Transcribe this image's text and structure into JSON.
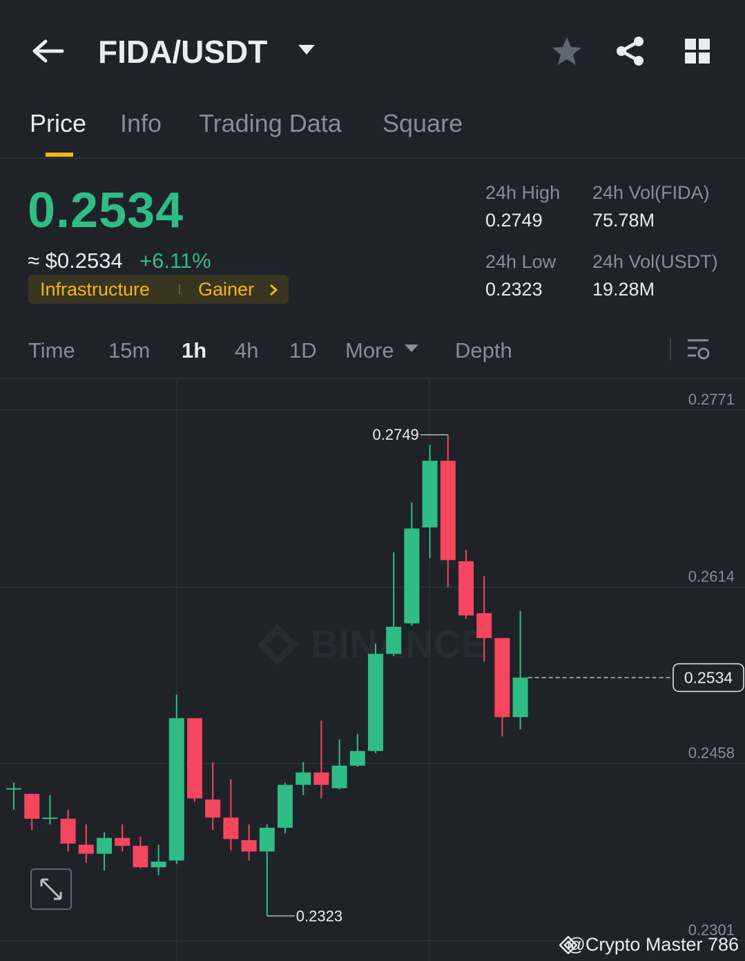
{
  "header": {
    "pair": "FIDA/USDT"
  },
  "tabs": [
    "Price",
    "Info",
    "Trading Data",
    "Square"
  ],
  "price": {
    "last": "0.2534",
    "usd": "≈ $0.2534",
    "change": "+6.11%"
  },
  "tags": [
    "Infrastructure",
    "Gainer"
  ],
  "stats": [
    {
      "label": "24h High",
      "value": "0.2749"
    },
    {
      "label": "24h Vol(FIDA)",
      "value": "75.78M"
    },
    {
      "label": "24h Low",
      "value": "0.2323"
    },
    {
      "label": "24h Vol(USDT)",
      "value": "19.28M"
    }
  ],
  "intervals": [
    "Time",
    "15m",
    "1h",
    "4h",
    "1D",
    "More",
    "Depth"
  ],
  "watermark": "BINANCE",
  "credit": "@Crypto Master 786",
  "chart_data": {
    "type": "candlestick",
    "up_color": "#2ebd85",
    "down_color": "#f6465d",
    "open": [
      0.2435,
      0.2431,
      0.2409,
      0.2409,
      0.2386,
      0.2378,
      0.2392,
      0.2385,
      0.2366,
      0.2372,
      0.2498,
      0.2426,
      0.241,
      0.239,
      0.238,
      0.2401,
      0.2439,
      0.245,
      0.2436,
      0.2456,
      0.2469,
      0.2555,
      0.2582,
      0.2667,
      0.2726,
      0.2637,
      0.2591,
      0.2569,
      0.2499
    ],
    "high": [
      0.2441,
      0.2431,
      0.243,
      0.2417,
      0.2404,
      0.2397,
      0.2404,
      0.2393,
      0.2386,
      0.2519,
      0.2498,
      0.2459,
      0.2444,
      0.2404,
      0.2404,
      0.2441,
      0.2459,
      0.2496,
      0.2479,
      0.2484,
      0.2564,
      0.2645,
      0.2689,
      0.274,
      0.2749,
      0.2647,
      0.2624,
      0.2569,
      0.2593
    ],
    "low": [
      0.2417,
      0.2399,
      0.2404,
      0.238,
      0.237,
      0.2363,
      0.238,
      0.2365,
      0.2359,
      0.2369,
      0.2424,
      0.2399,
      0.2381,
      0.2372,
      0.2323,
      0.2396,
      0.243,
      0.2427,
      0.2435,
      0.2455,
      0.2467,
      0.2553,
      0.258,
      0.264,
      0.2614,
      0.2586,
      0.2548,
      0.2482,
      0.2488
    ],
    "close": [
      0.2436,
      0.2409,
      0.241,
      0.2387,
      0.2378,
      0.2392,
      0.2385,
      0.2366,
      0.2371,
      0.2498,
      0.2427,
      0.241,
      0.2391,
      0.238,
      0.2401,
      0.2439,
      0.245,
      0.2439,
      0.2456,
      0.2469,
      0.2555,
      0.2579,
      0.2666,
      0.2726,
      0.2638,
      0.2589,
      0.2569,
      0.2499,
      0.2534
    ],
    "ylim": [
      0.2283,
      0.2799
    ],
    "yticks": [
      0.2771,
      0.2614,
      0.2458,
      0.2301
    ],
    "high_label": 0.2749,
    "low_label": 0.2323,
    "last_price": 0.2534
  }
}
